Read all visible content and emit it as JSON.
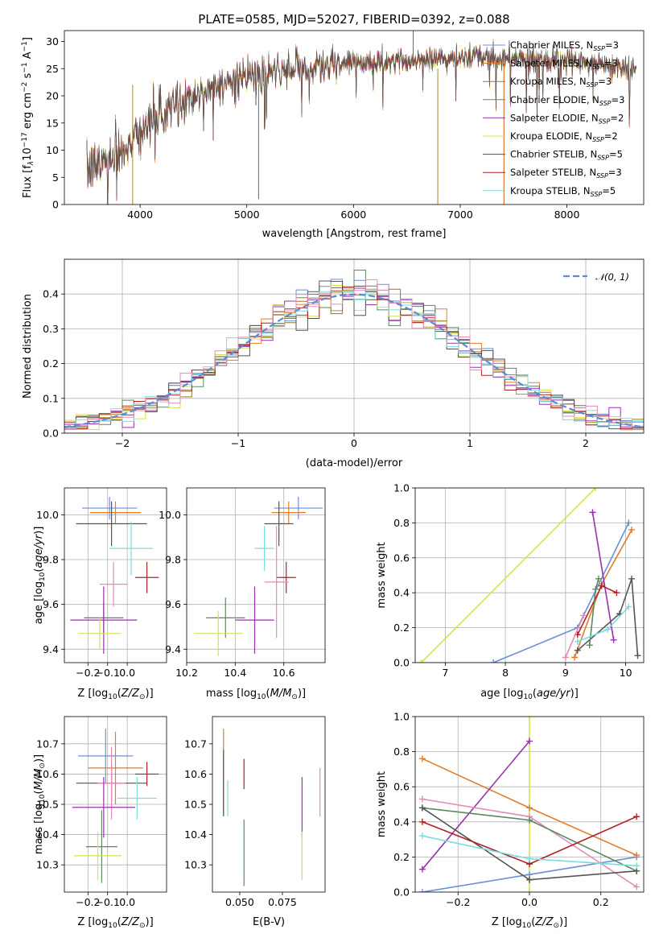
{
  "figure": {
    "title": "PLATE=0585, MJD=52027, FIBERID=0392, z=0.088"
  },
  "colors": {
    "c1": "#6a8fd8",
    "c2": "#e07c2a",
    "c3": "#a07820",
    "c4": "#5a8a5e",
    "c5": "#9a30b0",
    "c6": "#d8e04a",
    "c7": "#555555",
    "c8": "#b02222",
    "c9": "#79dede",
    "pink": "#e58ab8",
    "norm": "#5b8bd6"
  },
  "chart_data": [
    {
      "type": "line",
      "id": "spectrum",
      "title": "PLATE=0585, MJD=52027, FIBERID=0392, z=0.088",
      "xlabel": "wavelength [Angstrom, rest frame]",
      "ylabel_parts": [
        "Flux [f",
        "λ",
        "10",
        "−17",
        " erg cm",
        "−2",
        " s",
        "−1",
        " A",
        "−1",
        "]"
      ],
      "xlim": [
        3290,
        8720
      ],
      "ylim": [
        0,
        32
      ],
      "xticks": [
        4000,
        5000,
        6000,
        7000,
        8000
      ],
      "yticks": [
        0,
        5,
        10,
        15,
        20,
        25,
        30
      ],
      "grid": false,
      "legend": "top-right",
      "series": [
        {
          "name": "Chabrier MILES",
          "nssp": "3",
          "color": "c1"
        },
        {
          "name": "Salpeter MILES",
          "nssp": "3",
          "color": "c2"
        },
        {
          "name": "Kroupa MILES",
          "nssp": "3",
          "color": "c3"
        },
        {
          "name": "Chabrier ELODIE",
          "nssp": "3",
          "color": "c4"
        },
        {
          "name": "Salpeter ELODIE",
          "nssp": "2",
          "color": "c5"
        },
        {
          "name": "Kroupa ELODIE",
          "nssp": "2",
          "color": "c6"
        },
        {
          "name": "Chabrier STELIB",
          "nssp": "5",
          "color": "c7"
        },
        {
          "name": "Salpeter STELIB",
          "nssp": "3",
          "color": "c8"
        },
        {
          "name": "Kroupa STELIB",
          "nssp": "5",
          "color": "c9"
        }
      ],
      "continuum": {
        "x": [
          3500,
          3900,
          4000,
          4300,
          4600,
          5000,
          5500,
          6000,
          6500,
          7000,
          7500,
          8000,
          8400,
          8650
        ],
        "y": [
          6,
          11,
          14,
          18,
          21,
          23.5,
          25,
          26,
          26.5,
          27,
          27,
          26.5,
          25.5,
          25
        ]
      }
    },
    {
      "type": "histogram",
      "id": "residuals",
      "xlabel": "(data-model)/error",
      "ylabel": "Normed distribution",
      "xlim": [
        -2.5,
        2.5
      ],
      "ylim": [
        0,
        0.5
      ],
      "xticks": [
        -2,
        -1,
        0,
        1,
        2
      ],
      "yticks": [
        0.0,
        0.1,
        0.2,
        0.3,
        0.4
      ],
      "grid": true,
      "legend": "top-right",
      "reference": {
        "name": "𝒩(0, 1)",
        "color": "norm"
      },
      "bin_width": 0.1
    },
    {
      "type": "scatter",
      "id": "z_age",
      "xlabel": "Z [log10(Z/Z⊙)]",
      "ylabel": "age  [log10(age/yr)]",
      "xlim": [
        -0.32,
        0.2
      ],
      "ylim": [
        9.34,
        10.12
      ],
      "xticks": [
        -0.2,
        -0.1,
        0.0
      ],
      "yticks": [
        9.4,
        9.6,
        9.8,
        10.0
      ],
      "grid": true,
      "points": [
        {
          "color": "c1",
          "x": -0.09,
          "y": 10.03,
          "xerr": 0.14,
          "yerr": 0.05
        },
        {
          "color": "c2",
          "x": -0.06,
          "y": 10.01,
          "xerr": 0.13,
          "yerr": 0.05
        },
        {
          "color": "c7",
          "x": -0.08,
          "y": 9.96,
          "xerr": 0.18,
          "yerr": 0.1
        },
        {
          "color": "c9",
          "x": 0.02,
          "y": 9.85,
          "xerr": 0.11,
          "yerr": 0.12
        },
        {
          "color": "c8",
          "x": 0.1,
          "y": 9.72,
          "xerr": 0.06,
          "yerr": 0.07
        },
        {
          "color": "pink",
          "x": -0.07,
          "y": 9.69,
          "xerr": 0.07,
          "yerr": 0.1
        },
        {
          "color": "c4",
          "x": -0.12,
          "y": 9.54,
          "xerr": 0.1,
          "yerr": 0.07
        },
        {
          "color": "c5",
          "x": -0.12,
          "y": 9.53,
          "xerr": 0.17,
          "yerr": 0.15
        },
        {
          "color": "c6",
          "x": -0.14,
          "y": 9.47,
          "xerr": 0.11,
          "yerr": 0.07
        }
      ]
    },
    {
      "type": "scatter",
      "id": "mass_age",
      "xlabel": "mass [log10(M/M⊙)]",
      "ylabel": "",
      "xlim": [
        10.2,
        10.77
      ],
      "ylim": [
        9.34,
        10.12
      ],
      "xticks": [
        10.2,
        10.4,
        10.6
      ],
      "yticks": [
        9.4,
        9.6,
        9.8,
        10.0
      ],
      "grid": true,
      "points": [
        {
          "color": "c1",
          "x": 10.66,
          "y": 10.03,
          "xerr": 0.1,
          "yerr": 0.05
        },
        {
          "color": "c2",
          "x": 10.62,
          "y": 10.01,
          "xerr": 0.07,
          "yerr": 0.05
        },
        {
          "color": "c7",
          "x": 10.58,
          "y": 9.96,
          "xerr": 0.06,
          "yerr": 0.1
        },
        {
          "color": "c9",
          "x": 10.52,
          "y": 9.85,
          "xerr": 0.04,
          "yerr": 0.1
        },
        {
          "color": "c8",
          "x": 10.61,
          "y": 9.72,
          "xerr": 0.04,
          "yerr": 0.07
        },
        {
          "color": "pink",
          "x": 10.57,
          "y": 9.7,
          "xerr": 0.05,
          "yerr": 0.25
        },
        {
          "color": "c4",
          "x": 10.36,
          "y": 9.54,
          "xerr": 0.08,
          "yerr": 0.09
        },
        {
          "color": "c5",
          "x": 10.48,
          "y": 9.53,
          "xerr": 0.08,
          "yerr": 0.15
        },
        {
          "color": "c6",
          "x": 10.33,
          "y": 9.47,
          "xerr": 0.1,
          "yerr": 0.1
        }
      ]
    },
    {
      "type": "line",
      "id": "age_weight",
      "xlabel": "age  [log10(age/yr)]",
      "ylabel": "mass weight",
      "xlim": [
        6.5,
        10.3
      ],
      "ylim": [
        0,
        1.0
      ],
      "xticks": [
        7,
        8,
        9,
        10
      ],
      "yticks": [
        0.0,
        0.2,
        0.4,
        0.6,
        0.8,
        1.0
      ],
      "grid": true,
      "series": [
        {
          "color": "c6",
          "x": [
            6.6,
            9.5
          ],
          "y": [
            0.0,
            1.0
          ]
        },
        {
          "color": "c1",
          "x": [
            7.8,
            9.2,
            10.05
          ],
          "y": [
            0.0,
            0.2,
            0.8
          ]
        },
        {
          "color": "c2",
          "x": [
            9.15,
            9.6,
            10.1
          ],
          "y": [
            0.03,
            0.45,
            0.76
          ]
        },
        {
          "color": "c5",
          "x": [
            9.45,
            9.8
          ],
          "y": [
            0.86,
            0.13
          ]
        },
        {
          "color": "c7",
          "x": [
            9.2,
            9.9,
            10.1,
            10.2
          ],
          "y": [
            0.07,
            0.28,
            0.48,
            0.04
          ]
        },
        {
          "color": "c8",
          "x": [
            9.2,
            9.6,
            9.85
          ],
          "y": [
            0.16,
            0.44,
            0.4
          ]
        },
        {
          "color": "c4",
          "x": [
            9.4,
            9.5,
            9.55
          ],
          "y": [
            0.1,
            0.42,
            0.48
          ]
        },
        {
          "color": "pink",
          "x": [
            9.0,
            9.3
          ],
          "y": [
            0.03,
            0.27
          ]
        },
        {
          "color": "c9",
          "x": [
            9.2,
            9.7,
            10.05
          ],
          "y": [
            0.12,
            0.19,
            0.32
          ]
        }
      ]
    },
    {
      "type": "scatter",
      "id": "z_mass",
      "xlabel": "Z [log10(Z/Z⊙)]",
      "ylabel": "mass [log10(M/M⊙)]",
      "xlim": [
        -0.32,
        0.2
      ],
      "ylim": [
        10.21,
        10.79
      ],
      "xticks": [
        -0.2,
        -0.1,
        0.0
      ],
      "yticks": [
        10.3,
        10.4,
        10.5,
        10.6,
        10.7
      ],
      "grid": true,
      "points": [
        {
          "color": "c1",
          "x": -0.11,
          "y": 10.66,
          "xerr": 0.14,
          "yerr": 0.09
        },
        {
          "color": "c2",
          "x": -0.06,
          "y": 10.62,
          "xerr": 0.14,
          "yerr": 0.12
        },
        {
          "color": "c7",
          "x": -0.08,
          "y": 10.57,
          "xerr": 0.18,
          "yerr": 0.06
        },
        {
          "color": "c8",
          "x": 0.1,
          "y": 10.6,
          "xerr": 0.06,
          "yerr": 0.04
        },
        {
          "color": "c9",
          "x": 0.05,
          "y": 10.52,
          "xerr": 0.1,
          "yerr": 0.07
        },
        {
          "color": "pink",
          "x": -0.08,
          "y": 10.57,
          "xerr": 0.07,
          "yerr": 0.12
        },
        {
          "color": "c5",
          "x": -0.12,
          "y": 10.49,
          "xerr": 0.16,
          "yerr": 0.1
        },
        {
          "color": "c4",
          "x": -0.13,
          "y": 10.36,
          "xerr": 0.08,
          "yerr": 0.12
        },
        {
          "color": "c6",
          "x": -0.15,
          "y": 10.33,
          "xerr": 0.12,
          "yerr": 0.08
        }
      ]
    },
    {
      "type": "scatter",
      "id": "ebv_mass",
      "xlabel": "E(B-V)",
      "ylabel": "",
      "xlim": [
        0.034,
        0.1
      ],
      "ylim": [
        10.21,
        10.79
      ],
      "xticks": [
        0.05,
        0.075
      ],
      "xtick_labels": [
        "0.050",
        "0.075"
      ],
      "yticks": [
        10.3,
        10.4,
        10.5,
        10.6,
        10.7
      ],
      "grid": false,
      "points": [
        {
          "color": "c2",
          "x": 0.0405,
          "y": 10.61,
          "yerr": 0.14
        },
        {
          "color": "c7",
          "x": 0.0405,
          "y": 10.57,
          "yerr": 0.11
        },
        {
          "color": "c9",
          "x": 0.043,
          "y": 10.52,
          "yerr": 0.06
        },
        {
          "color": "c8",
          "x": 0.0525,
          "y": 10.6,
          "yerr": 0.05
        },
        {
          "color": "c4",
          "x": 0.0525,
          "y": 10.34,
          "yerr": 0.11
        },
        {
          "color": "c5",
          "x": 0.0865,
          "y": 10.49,
          "yerr": 0.1
        },
        {
          "color": "c6",
          "x": 0.0865,
          "y": 10.33,
          "yerr": 0.08
        },
        {
          "color": "pink",
          "x": 0.097,
          "y": 10.54,
          "yerr": 0.08
        }
      ]
    },
    {
      "type": "line",
      "id": "z_weight",
      "xlabel": "Z [log10(Z/Z⊙)]",
      "ylabel": "mass weight",
      "xlim": [
        -0.32,
        0.32
      ],
      "ylim": [
        0,
        1.0
      ],
      "xticks": [
        -0.2,
        0.0,
        0.2
      ],
      "yticks": [
        0.0,
        0.2,
        0.4,
        0.6,
        0.8,
        1.0
      ],
      "grid": true,
      "series": [
        {
          "color": "c6",
          "x": [
            0.0,
            0.0
          ],
          "y": [
            0.0,
            1.0
          ]
        },
        {
          "color": "c1",
          "x": [
            -0.3,
            0.0,
            0.3
          ],
          "y": [
            0.0,
            0.1,
            0.2
          ]
        },
        {
          "color": "c2",
          "x": [
            -0.3,
            0.0,
            0.3
          ],
          "y": [
            0.76,
            0.48,
            0.21
          ]
        },
        {
          "color": "c5",
          "x": [
            -0.3,
            0.0
          ],
          "y": [
            0.13,
            0.86
          ]
        },
        {
          "color": "pink",
          "x": [
            -0.3,
            0.0,
            0.3
          ],
          "y": [
            0.53,
            0.43,
            0.03
          ]
        },
        {
          "color": "c4",
          "x": [
            -0.3,
            0.0,
            0.3
          ],
          "y": [
            0.48,
            0.41,
            0.12
          ]
        },
        {
          "color": "c7",
          "x": [
            -0.3,
            0.0,
            0.3
          ],
          "y": [
            0.48,
            0.07,
            0.12
          ]
        },
        {
          "color": "c8",
          "x": [
            -0.3,
            0.0,
            0.3
          ],
          "y": [
            0.4,
            0.16,
            0.43
          ]
        },
        {
          "color": "c9",
          "x": [
            -0.3,
            0.0,
            0.3
          ],
          "y": [
            0.32,
            0.19,
            0.15
          ]
        }
      ]
    }
  ]
}
